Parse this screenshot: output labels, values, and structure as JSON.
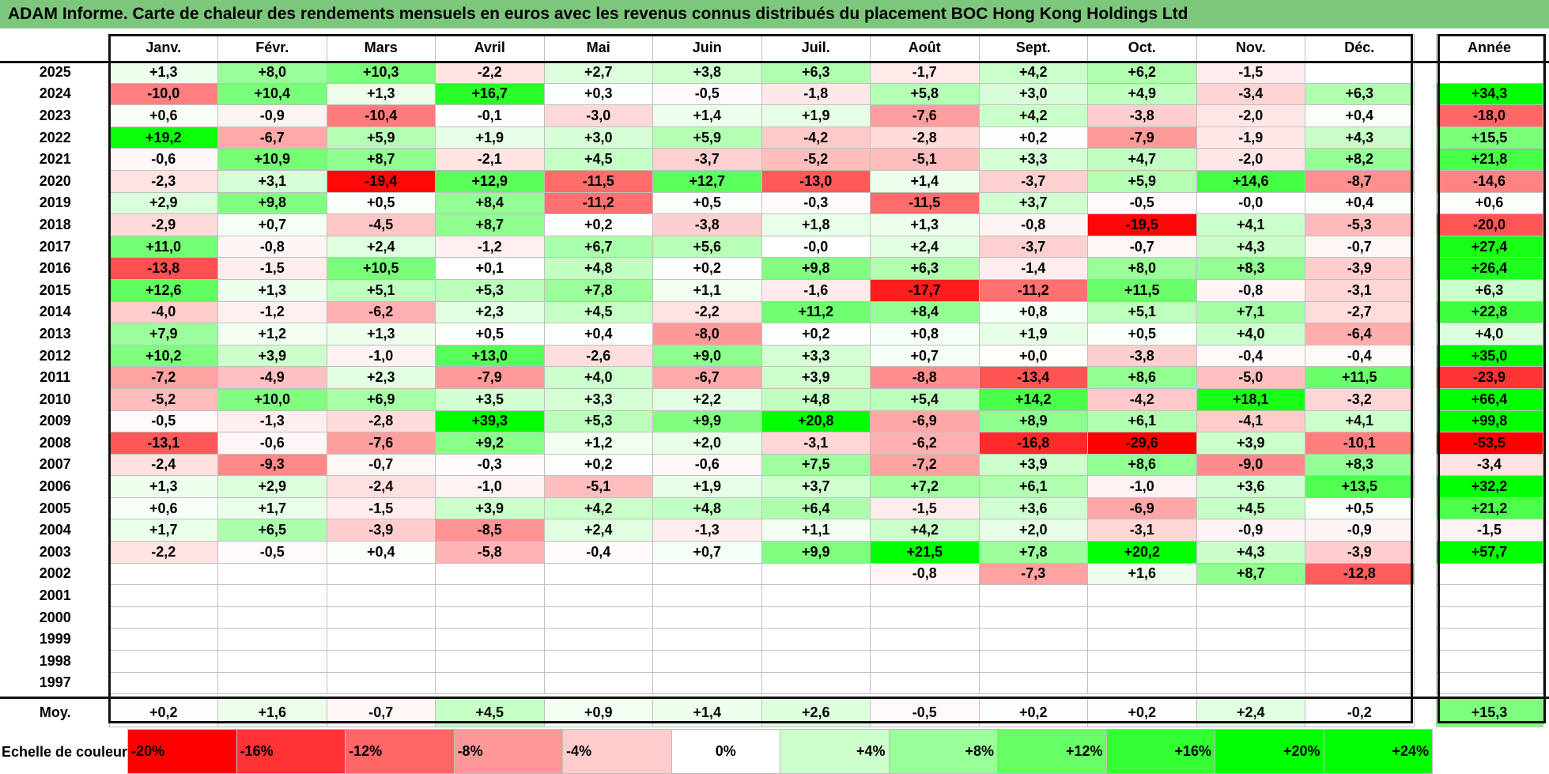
{
  "title": "ADAM Informe. Carte de chaleur des rendements mensuels en euros avec les revenus connus distribués du placement BOC Hong Kong Holdings Ltd",
  "chart_data": {
    "type": "heatmap",
    "months": [
      "Janv.",
      "Févr.",
      "Mars",
      "Avril",
      "Mai",
      "Juin",
      "Juil.",
      "Août",
      "Sept.",
      "Oct.",
      "Nov.",
      "Déc."
    ],
    "year_header": "Année",
    "rows": [
      {
        "year": "2025",
        "values": [
          "+1,3",
          "+8,0",
          "+10,3",
          "-2,2",
          "+2,7",
          "+3,8",
          "+6,3",
          "-1,7",
          "+4,2",
          "+6,2",
          "-1,5",
          ""
        ],
        "annual": ""
      },
      {
        "year": "2024",
        "values": [
          "-10,0",
          "+10,4",
          "+1,3",
          "+16,7",
          "+0,3",
          "-0,5",
          "-1,8",
          "+5,8",
          "+3,0",
          "+4,9",
          "-3,4",
          "+6,3"
        ],
        "annual": "+34,3"
      },
      {
        "year": "2023",
        "values": [
          "+0,6",
          "-0,9",
          "-10,4",
          "-0,1",
          "-3,0",
          "+1,4",
          "+1,9",
          "-7,6",
          "+4,2",
          "-3,8",
          "-2,0",
          "+0,4"
        ],
        "annual": "-18,0"
      },
      {
        "year": "2022",
        "values": [
          "+19,2",
          "-6,7",
          "+5,9",
          "+1,9",
          "+3,0",
          "+5,9",
          "-4,2",
          "-2,8",
          "+0,2",
          "-7,9",
          "-1,9",
          "+4,3"
        ],
        "annual": "+15,5"
      },
      {
        "year": "2021",
        "values": [
          "-0,6",
          "+10,9",
          "+8,7",
          "-2,1",
          "+4,5",
          "-3,7",
          "-5,2",
          "-5,1",
          "+3,3",
          "+4,7",
          "-2,0",
          "+8,2"
        ],
        "annual": "+21,8"
      },
      {
        "year": "2020",
        "values": [
          "-2,3",
          "+3,1",
          "-19,4",
          "+12,9",
          "-11,5",
          "+12,7",
          "-13,0",
          "+1,4",
          "-3,7",
          "+5,9",
          "+14,6",
          "-8,7"
        ],
        "annual": "-14,6"
      },
      {
        "year": "2019",
        "values": [
          "+2,9",
          "+9,8",
          "+0,5",
          "+8,4",
          "-11,2",
          "+0,5",
          "-0,3",
          "-11,5",
          "+3,7",
          "-0,5",
          "-0,0",
          "+0,4"
        ],
        "annual": "+0,6"
      },
      {
        "year": "2018",
        "values": [
          "-2,9",
          "+0,7",
          "-4,5",
          "+8,7",
          "+0,2",
          "-3,8",
          "+1,8",
          "+1,3",
          "-0,8",
          "-19,5",
          "+4,1",
          "-5,3"
        ],
        "annual": "-20,0"
      },
      {
        "year": "2017",
        "values": [
          "+11,0",
          "-0,8",
          "+2,4",
          "-1,2",
          "+6,7",
          "+5,6",
          "-0,0",
          "+2,4",
          "-3,7",
          "-0,7",
          "+4,3",
          "-0,7"
        ],
        "annual": "+27,4"
      },
      {
        "year": "2016",
        "values": [
          "-13,8",
          "-1,5",
          "+10,5",
          "+0,1",
          "+4,8",
          "+0,2",
          "+9,8",
          "+6,3",
          "-1,4",
          "+8,0",
          "+8,3",
          "-3,9"
        ],
        "annual": "+26,4"
      },
      {
        "year": "2015",
        "values": [
          "+12,6",
          "+1,3",
          "+5,1",
          "+5,3",
          "+7,8",
          "+1,1",
          "-1,6",
          "-17,7",
          "-11,2",
          "+11,5",
          "-0,8",
          "-3,1"
        ],
        "annual": "+6,3"
      },
      {
        "year": "2014",
        "values": [
          "-4,0",
          "-1,2",
          "-6,2",
          "+2,3",
          "+4,5",
          "-2,2",
          "+11,2",
          "+8,4",
          "+0,8",
          "+5,1",
          "+7,1",
          "-2,7"
        ],
        "annual": "+22,8"
      },
      {
        "year": "2013",
        "values": [
          "+7,9",
          "+1,2",
          "+1,3",
          "+0,5",
          "+0,4",
          "-8,0",
          "+0,2",
          "+0,8",
          "+1,9",
          "+0,5",
          "+4,0",
          "-6,4"
        ],
        "annual": "+4,0"
      },
      {
        "year": "2012",
        "values": [
          "+10,2",
          "+3,9",
          "-1,0",
          "+13,0",
          "-2,6",
          "+9,0",
          "+3,3",
          "+0,7",
          "+0,0",
          "-3,8",
          "-0,4",
          "-0,4"
        ],
        "annual": "+35,0"
      },
      {
        "year": "2011",
        "values": [
          "-7,2",
          "-4,9",
          "+2,3",
          "-7,9",
          "+4,0",
          "-6,7",
          "+3,9",
          "-8,8",
          "-13,4",
          "+8,6",
          "-5,0",
          "+11,5"
        ],
        "annual": "-23,9"
      },
      {
        "year": "2010",
        "values": [
          "-5,2",
          "+10,0",
          "+6,9",
          "+3,5",
          "+3,3",
          "+2,2",
          "+4,8",
          "+5,4",
          "+14,2",
          "-4,2",
          "+18,1",
          "-3,2"
        ],
        "annual": "+66,4"
      },
      {
        "year": "2009",
        "values": [
          "-0,5",
          "-1,3",
          "-2,8",
          "+39,3",
          "+5,3",
          "+9,9",
          "+20,8",
          "-6,9",
          "+8,9",
          "+6,1",
          "-4,1",
          "+4,1"
        ],
        "annual": "+99,8"
      },
      {
        "year": "2008",
        "values": [
          "-13,1",
          "-0,6",
          "-7,6",
          "+9,2",
          "+1,2",
          "+2,0",
          "-3,1",
          "-6,2",
          "-16,8",
          "-29,6",
          "+3,9",
          "-10,1"
        ],
        "annual": "-53,5"
      },
      {
        "year": "2007",
        "values": [
          "-2,4",
          "-9,3",
          "-0,7",
          "-0,3",
          "+0,2",
          "-0,6",
          "+7,5",
          "-7,2",
          "+3,9",
          "+8,6",
          "-9,0",
          "+8,3"
        ],
        "annual": "-3,4"
      },
      {
        "year": "2006",
        "values": [
          "+1,3",
          "+2,9",
          "-2,4",
          "-1,0",
          "-5,1",
          "+1,9",
          "+3,7",
          "+7,2",
          "+6,1",
          "-1,0",
          "+3,6",
          "+13,5"
        ],
        "annual": "+32,2"
      },
      {
        "year": "2005",
        "values": [
          "+0,6",
          "+1,7",
          "-1,5",
          "+3,9",
          "+4,2",
          "+4,8",
          "+6,4",
          "-1,5",
          "+3,6",
          "-6,9",
          "+4,5",
          "+0,5"
        ],
        "annual": "+21,2"
      },
      {
        "year": "2004",
        "values": [
          "+1,7",
          "+6,5",
          "-3,9",
          "-8,5",
          "+2,4",
          "-1,3",
          "+1,1",
          "+4,2",
          "+2,0",
          "-3,1",
          "-0,9",
          "-0,9"
        ],
        "annual": "-1,5"
      },
      {
        "year": "2003",
        "values": [
          "-2,2",
          "-0,5",
          "+0,4",
          "-5,8",
          "-0,4",
          "+0,7",
          "+9,9",
          "+21,5",
          "+7,8",
          "+20,2",
          "+4,3",
          "-3,9"
        ],
        "annual": "+57,7"
      },
      {
        "year": "2002",
        "values": [
          "",
          "",
          "",
          "",
          "",
          "",
          "",
          "-0,8",
          "-7,3",
          "+1,6",
          "+8,7",
          "-12,8"
        ],
        "annual": ""
      },
      {
        "year": "2001",
        "values": [
          "",
          "",
          "",
          "",
          "",
          "",
          "",
          "",
          "",
          "",
          "",
          ""
        ],
        "annual": ""
      },
      {
        "year": "2000",
        "values": [
          "",
          "",
          "",
          "",
          "",
          "",
          "",
          "",
          "",
          "",
          "",
          ""
        ],
        "annual": ""
      },
      {
        "year": "1999",
        "values": [
          "",
          "",
          "",
          "",
          "",
          "",
          "",
          "",
          "",
          "",
          "",
          ""
        ],
        "annual": ""
      },
      {
        "year": "1998",
        "values": [
          "",
          "",
          "",
          "",
          "",
          "",
          "",
          "",
          "",
          "",
          "",
          ""
        ],
        "annual": ""
      },
      {
        "year": "1997",
        "values": [
          "",
          "",
          "",
          "",
          "",
          "",
          "",
          "",
          "",
          "",
          "",
          ""
        ],
        "annual": ""
      }
    ],
    "average": {
      "label": "Moy.",
      "values": [
        "+0,2",
        "+1,6",
        "-0,7",
        "+4,5",
        "+0,9",
        "+1,4",
        "+2,6",
        "-0,5",
        "+0,2",
        "+0,2",
        "+2,4",
        "-0,2"
      ],
      "annual": "+15,3"
    },
    "scale": {
      "label": "Echelle de couleur",
      "items": [
        "-20%",
        "-16%",
        "-12%",
        "-8%",
        "-4%",
        "0%",
        "+4%",
        "+8%",
        "+12%",
        "+16%",
        "+20%",
        "+24%"
      ],
      "colors": [
        "#ff0000",
        "#ff3333",
        "#ff6666",
        "#ff9999",
        "#ffcccc",
        "#ffffff",
        "#ccffcc",
        "#99ff99",
        "#66ff66",
        "#33ff33",
        "#00ff00",
        "#00ff00"
      ]
    },
    "color_negative": "#ff0000",
    "color_positive": "#00ff00"
  }
}
